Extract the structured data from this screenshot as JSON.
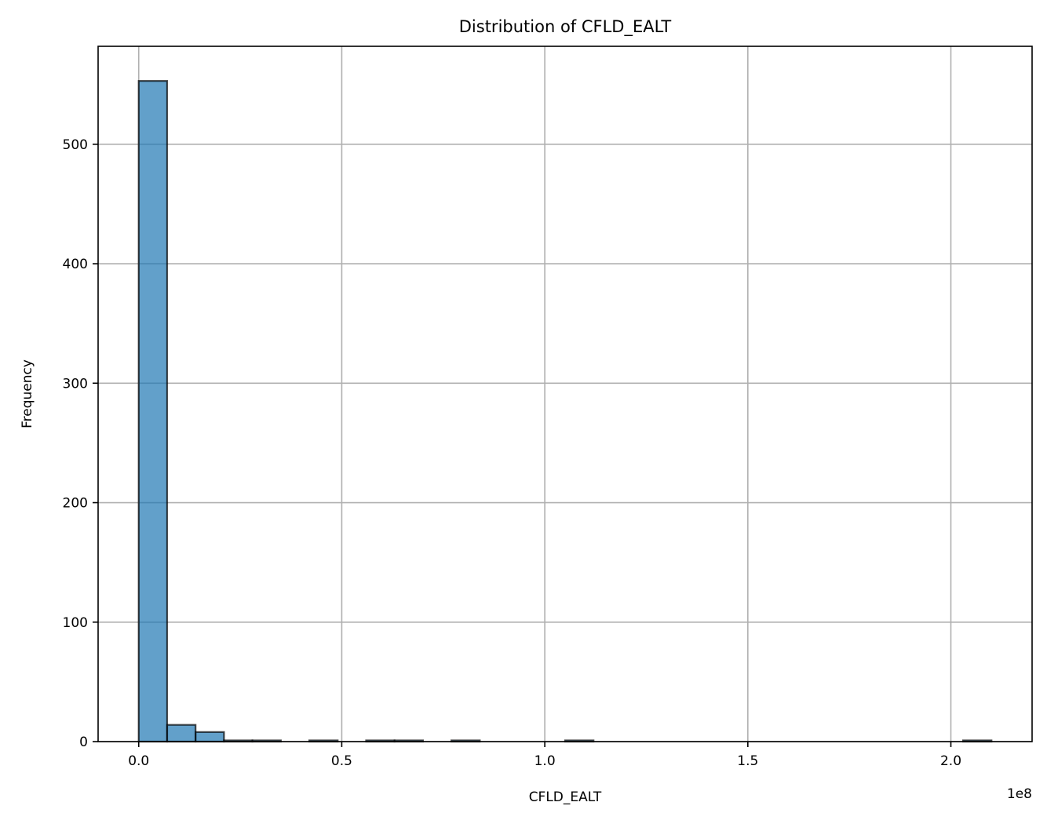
{
  "chart_data": {
    "type": "bar",
    "title": "Distribution of CFLD_EALT",
    "xlabel": "CFLD_EALT",
    "ylabel": "Frequency",
    "x_offset_label": "1e8",
    "x_scale_factor": 100000000,
    "xlim": [
      -0.1,
      2.2
    ],
    "ylim": [
      0,
      582
    ],
    "xticks": [
      0.0,
      0.5,
      1.0,
      1.5,
      2.0
    ],
    "xtick_labels": [
      "0.0",
      "0.5",
      "1.0",
      "1.5",
      "2.0"
    ],
    "yticks": [
      0,
      100,
      200,
      300,
      400,
      500
    ],
    "ytick_labels": [
      "0",
      "100",
      "200",
      "300",
      "400",
      "500"
    ],
    "grid": true,
    "bar_color": "#1f77b4",
    "bar_edge_color": "#000000",
    "bin_edges": [
      0.0,
      0.07,
      0.14,
      0.21,
      0.28,
      0.35,
      0.42,
      0.49,
      0.56,
      0.63,
      0.7,
      0.77,
      0.84,
      0.91,
      0.98,
      1.05,
      1.12,
      1.19,
      1.26,
      1.33,
      1.4,
      1.47,
      1.54,
      1.61,
      1.68,
      1.75,
      1.82,
      1.89,
      1.96,
      2.03,
      2.1
    ],
    "values": [
      553,
      14,
      8,
      1,
      1,
      0,
      1,
      0,
      1,
      1,
      0,
      1,
      0,
      0,
      0,
      1,
      0,
      0,
      0,
      0,
      0,
      0,
      0,
      0,
      0,
      0,
      0,
      0,
      0,
      1
    ]
  }
}
